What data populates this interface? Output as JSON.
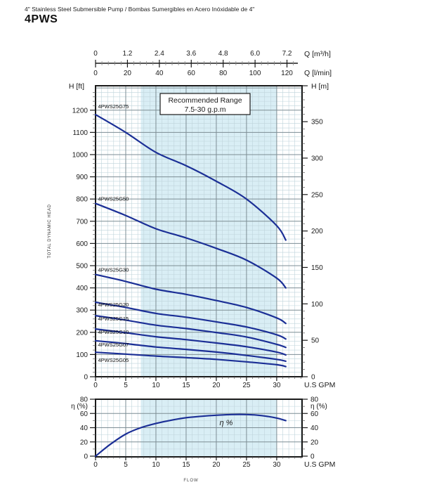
{
  "header": {
    "subtitle": "4\" Stainless Steel Submersible Pump / Bombas Sumergibles en Acero Inóxidable de 4\"",
    "title": "4PWS"
  },
  "colors": {
    "curve": "#1b2f96",
    "range_fill": "#d9eef5",
    "grid_minor": "#bfd4db",
    "grid_major": "#7d8d94",
    "border": "#1a1a1a",
    "text": "#1a1a1a"
  },
  "chart_data": [
    {
      "type": "line",
      "name": "head-capacity-curves",
      "annotation_box": [
        "Recommended Range",
        "7.5-30 g.p.m"
      ],
      "recommended_range_gpm": [
        7.5,
        30
      ],
      "x_gpm": [
        0,
        5,
        10,
        15,
        20,
        25,
        30,
        31.5
      ],
      "series": [
        {
          "name": "4PWS25G75",
          "values": [
            1180,
            1100,
            1010,
            950,
            880,
            800,
            680,
            615
          ]
        },
        {
          "name": "4PWS25G50",
          "values": [
            780,
            726,
            666,
            625,
            578,
            525,
            444,
            400
          ]
        },
        {
          "name": "4PWS25G30",
          "values": [
            460,
            429,
            394,
            371,
            343,
            312,
            265,
            240
          ]
        },
        {
          "name": "4PWS25G20",
          "values": [
            335,
            312,
            285,
            268,
            247,
            224,
            189,
            170
          ]
        },
        {
          "name": "4PWS25G15",
          "values": [
            275,
            255,
            232,
            217,
            199,
            179,
            146,
            132
          ]
        },
        {
          "name": "4PWS25G10",
          "values": [
            215,
            198,
            180,
            167,
            152,
            135,
            111,
            98
          ]
        },
        {
          "name": "4PWS25G07",
          "values": [
            162,
            149,
            134,
            123,
            111,
            96,
            78,
            70
          ]
        },
        {
          "name": "4PWS25G05",
          "values": [
            110,
            102,
            93,
            86,
            78,
            67,
            54,
            46
          ]
        }
      ],
      "axes": {
        "top_primary": {
          "unit": "Q [m³/h]",
          "labels": [
            "0",
            "1.2",
            "2.4",
            "3.6",
            "4.8",
            "6.0",
            "7.2"
          ]
        },
        "top_secondary": {
          "unit": "Q [l/min]",
          "labels": [
            "0",
            "20",
            "40",
            "60",
            "80",
            "100",
            "120"
          ]
        },
        "left": {
          "unit": "H [ft]",
          "title": "TOTAL DYNAMIC HEAD",
          "labels": [
            "0",
            "100",
            "200",
            "300",
            "400",
            "500",
            "600",
            "700",
            "800",
            "900",
            "1000",
            "1100",
            "1200"
          ],
          "max": 1310,
          "minor_step": 20
        },
        "right": {
          "unit": "H [m]",
          "labels": [
            "0",
            "50",
            "100",
            "150",
            "200",
            "250",
            "300",
            "350"
          ],
          "minor_step": 10
        },
        "bottom": {
          "unit": "U.S GPM",
          "labels": [
            "0",
            "5",
            "10",
            "15",
            "20",
            "25",
            "30"
          ],
          "max": 34.2,
          "minor_step": 1
        }
      }
    },
    {
      "type": "line",
      "name": "efficiency-curve",
      "annotation": "η %",
      "recommended_range_gpm": [
        7.5,
        30
      ],
      "x_gpm": [
        0,
        2.5,
        5,
        7.5,
        10,
        12.5,
        15,
        17.5,
        20,
        22.5,
        25,
        27.5,
        30,
        31.5
      ],
      "values": [
        0,
        17,
        31,
        40,
        46,
        50.5,
        54,
        56,
        57.5,
        58.5,
        58.5,
        57,
        53.5,
        50
      ],
      "axes": {
        "left": {
          "unit": "η (%)",
          "labels": [
            "0",
            "20",
            "40",
            "60",
            "80"
          ],
          "max": 80,
          "minor_step": 10
        },
        "right": {
          "unit": "η (%)",
          "labels": [
            "0",
            "20",
            "40",
            "60",
            "80"
          ]
        },
        "bottom": {
          "unit": "U.S GPM",
          "labels": [
            "0",
            "5",
            "10",
            "15",
            "20",
            "25",
            "30"
          ],
          "title": "FLOW"
        }
      }
    }
  ]
}
